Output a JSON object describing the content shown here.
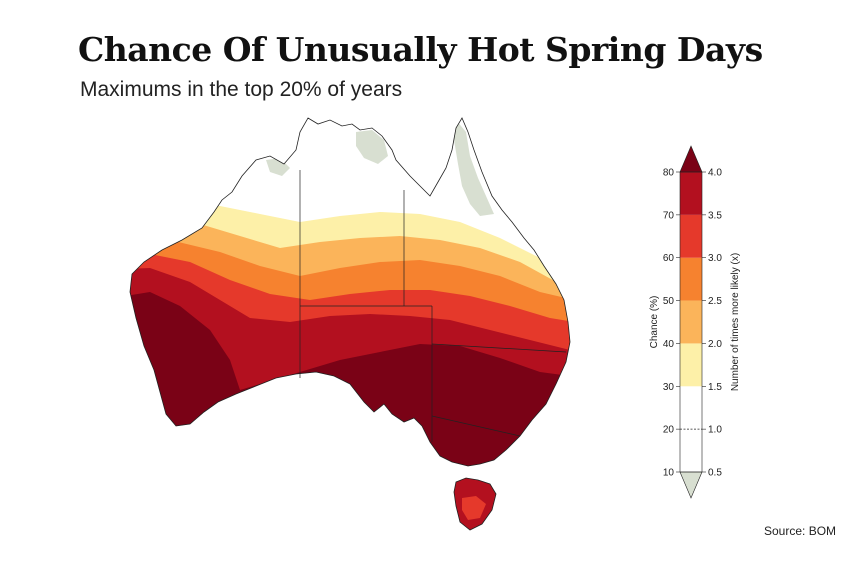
{
  "title": "Chance Of Unusually Hot Spring Days",
  "subtitle": "Maximums in the top 20% of years",
  "source": "Source: BOM",
  "legend": {
    "left_axis_label": "Chance (%)",
    "right_axis_label": "Number of times more likely (x)",
    "chance_ticks": [
      "10",
      "20",
      "30",
      "40",
      "50",
      "60",
      "70",
      "80"
    ],
    "ratio_ticks": [
      "0.5",
      "1.0",
      "1.5",
      "2.0",
      "2.5",
      "3.0",
      "3.5",
      "4.0"
    ],
    "bands": [
      {
        "from": 0.5,
        "to": 1.0,
        "color": "#ffffff"
      },
      {
        "from": 1.0,
        "to": 1.5,
        "color": "#ffffff"
      },
      {
        "from": 1.5,
        "to": 2.0,
        "color": "#fdf0a8"
      },
      {
        "from": 2.0,
        "to": 2.5,
        "color": "#fbb45a"
      },
      {
        "from": 2.5,
        "to": 3.0,
        "color": "#f6822f"
      },
      {
        "from": 3.0,
        "to": 3.5,
        "color": "#e5392b"
      },
      {
        "from": 3.5,
        "to": 4.0,
        "color": "#b3101f"
      }
    ],
    "over_color": "#7a0216",
    "under_color": "#d8dfd1"
  }
}
